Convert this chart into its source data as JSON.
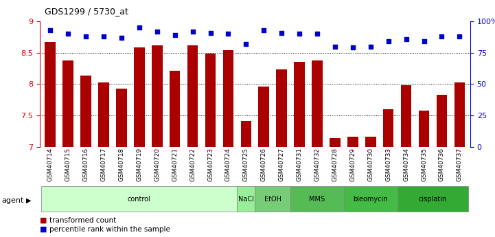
{
  "title": "GDS1299 / 5730_at",
  "samples": [
    "GSM40714",
    "GSM40715",
    "GSM40716",
    "GSM40717",
    "GSM40718",
    "GSM40719",
    "GSM40720",
    "GSM40721",
    "GSM40722",
    "GSM40723",
    "GSM40724",
    "GSM40725",
    "GSM40726",
    "GSM40727",
    "GSM40731",
    "GSM40732",
    "GSM40728",
    "GSM40729",
    "GSM40730",
    "GSM40733",
    "GSM40734",
    "GSM40735",
    "GSM40736",
    "GSM40737"
  ],
  "bar_values": [
    8.67,
    8.38,
    8.14,
    8.03,
    7.93,
    8.59,
    8.62,
    8.21,
    8.62,
    8.49,
    8.54,
    7.41,
    7.96,
    8.23,
    8.35,
    8.38,
    7.14,
    7.16,
    7.16,
    7.6,
    7.98,
    7.58,
    7.83,
    8.03
  ],
  "percentile_values": [
    93,
    90,
    88,
    88,
    87,
    95,
    92,
    89,
    92,
    91,
    90,
    82,
    93,
    91,
    90,
    90,
    80,
    79,
    80,
    84,
    86,
    84,
    88,
    88
  ],
  "ylim_left": [
    7,
    9
  ],
  "ylim_right": [
    0,
    100
  ],
  "yticks_left": [
    7,
    7.5,
    8,
    8.5,
    9
  ],
  "yticks_right": [
    0,
    25,
    50,
    75,
    100
  ],
  "ytick_right_labels": [
    "0",
    "25",
    "50",
    "75",
    "100%"
  ],
  "bar_color": "#aa0000",
  "dot_color": "#0000cc",
  "grid_color": "#000000",
  "agent_groups": [
    {
      "label": "control",
      "start": 0,
      "end": 11,
      "color": "#ccffcc"
    },
    {
      "label": "NaCl",
      "start": 11,
      "end": 12,
      "color": "#99ee99"
    },
    {
      "label": "EtOH",
      "start": 12,
      "end": 14,
      "color": "#77cc77"
    },
    {
      "label": "MMS",
      "start": 14,
      "end": 17,
      "color": "#55bb55"
    },
    {
      "label": "bleomycin",
      "start": 17,
      "end": 20,
      "color": "#44bb44"
    },
    {
      "label": "cisplatin",
      "start": 20,
      "end": 24,
      "color": "#33aa33"
    }
  ],
  "legend_bar_label": "transformed count",
  "legend_dot_label": "percentile rank within the sample",
  "xlabel_agent": "agent",
  "background_color": "#ffffff",
  "plot_bg_color": "#ffffff"
}
